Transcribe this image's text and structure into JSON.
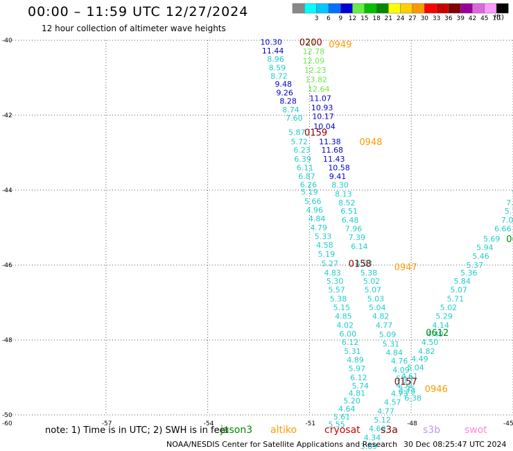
{
  "header": {
    "title": "00:00 – 11:59 UTC 12/27/2024",
    "subtitle": "12 hour collection of altimeter wave heights"
  },
  "legend": {
    "units": "(ft)",
    "items": [
      {
        "label": "",
        "color": "#888888"
      },
      {
        "label": "3",
        "color": "#00ffff"
      },
      {
        "label": "6",
        "color": "#00c8ff"
      },
      {
        "label": "9",
        "color": "#0070ff"
      },
      {
        "label": "12",
        "color": "#0000d8"
      },
      {
        "label": "15",
        "color": "#66ee44"
      },
      {
        "label": "18",
        "color": "#00c000"
      },
      {
        "label": "21",
        "color": "#008800"
      },
      {
        "label": "24",
        "color": "#ffff00"
      },
      {
        "label": "27",
        "color": "#ffd000"
      },
      {
        "label": "30",
        "color": "#ff9900"
      },
      {
        "label": "33",
        "color": "#ff0000"
      },
      {
        "label": "36",
        "color": "#cc0000"
      },
      {
        "label": "39",
        "color": "#800000"
      },
      {
        "label": "42",
        "color": "#990099"
      },
      {
        "label": "45",
        "color": "#dd66dd"
      },
      {
        "label": "70",
        "color": "#ff99ff"
      },
      {
        "label": "",
        "color": "#000000"
      }
    ]
  },
  "footer": {
    "note": "note: 1) Time is in UTC; 2) SWH is in feet",
    "satellites": [
      {
        "label": "jason3",
        "color": "#008800"
      },
      {
        "label": "altiko",
        "color": "#ff9900"
      },
      {
        "label": "cryosat",
        "color": "#cc0000"
      },
      {
        "label": "s3a",
        "color": "#800000"
      },
      {
        "label": "s3b",
        "color": "#bb99ee"
      },
      {
        "label": "swot",
        "color": "#ff88dd"
      }
    ],
    "credit": "NOAA/NESDIS Center for Satellite Applications and Research",
    "timestamp": "30 Dec 08:25:47 UTC 2024"
  },
  "colors": {
    "cyan": "#22cccc",
    "blue": "#0000cc",
    "lightgreen": "#66ee44",
    "darkred": "#800000",
    "orange": "#ff9900",
    "green": "#008800"
  },
  "chart_data": {
    "type": "scatter",
    "title": "00:00 – 11:59 UTC 12/27/2024",
    "subtitle": "12 hour collection of altimeter wave heights",
    "xlim": [
      -60,
      -45
    ],
    "ylim": [
      -50,
      -40
    ],
    "x_ticks": [
      -57,
      -54,
      -51,
      -48,
      -45
    ],
    "x_tick_labels": [
      "-57",
      "-54",
      "-51",
      "-48",
      "-45"
    ],
    "x_origin_label": "-60",
    "y_ticks": [
      -40,
      -42,
      -44,
      -46,
      -48,
      -50
    ],
    "y_tick_labels": [
      "-40",
      "-42",
      "-44",
      "-46",
      "-48",
      "-50"
    ],
    "grid": true,
    "time_labels": [
      {
        "text": "0200",
        "x": -51.3,
        "y": -40.05,
        "color": "darkred"
      },
      {
        "text": "0949",
        "x": -50.43,
        "y": -40.1,
        "color": "orange"
      },
      {
        "text": "0159",
        "x": -51.15,
        "y": -42.45,
        "color": "darkred"
      },
      {
        "text": "0948",
        "x": -49.53,
        "y": -42.7,
        "color": "orange"
      },
      {
        "text": "0158",
        "x": -49.85,
        "y": -45.95,
        "color": "darkred"
      },
      {
        "text": "0947",
        "x": -48.5,
        "y": -46.05,
        "color": "orange"
      },
      {
        "text": "0612",
        "x": -47.57,
        "y": -47.8,
        "color": "green"
      },
      {
        "text": "0157",
        "x": -48.5,
        "y": -49.1,
        "color": "darkred"
      },
      {
        "text": "0946",
        "x": -47.6,
        "y": -49.3,
        "color": "orange"
      },
      {
        "text": "06",
        "x": -45.2,
        "y": -45.3,
        "color": "green"
      }
    ],
    "tracks": [
      {
        "name": "",
        "color": "blue",
        "points": [
          {
            "x": -52.45,
            "y": -40.05,
            "v": "10.30"
          },
          {
            "x": -52.4,
            "y": -40.28,
            "v": "11.44"
          },
          {
            "x": -52.25,
            "y": -40.5,
            "v": "8.96",
            "c": "cyan"
          },
          {
            "x": -52.2,
            "y": -40.73,
            "v": "8.59",
            "c": "cyan"
          },
          {
            "x": -52.15,
            "y": -40.95,
            "v": "8.72",
            "c": "cyan"
          },
          {
            "x": -52.02,
            "y": -41.17,
            "v": "9.48"
          },
          {
            "x": -51.98,
            "y": -41.4,
            "v": "9.26"
          },
          {
            "x": -51.88,
            "y": -41.62,
            "v": "8.28"
          },
          {
            "x": -51.8,
            "y": -41.85,
            "v": "8.74",
            "c": "cyan"
          },
          {
            "x": -51.7,
            "y": -42.07,
            "v": "7.60",
            "c": "cyan"
          },
          {
            "x": -51.62,
            "y": -42.45,
            "v": "5.87",
            "c": "cyan"
          },
          {
            "x": -51.55,
            "y": -42.7,
            "v": "5.72",
            "c": "cyan"
          },
          {
            "x": -51.47,
            "y": -42.93,
            "v": "6.23",
            "c": "cyan"
          },
          {
            "x": -51.45,
            "y": -43.17,
            "v": "6.39",
            "c": "cyan"
          },
          {
            "x": -51.38,
            "y": -43.4,
            "v": "6.11",
            "c": "cyan"
          },
          {
            "x": -51.33,
            "y": -43.63,
            "v": "6.87",
            "c": "cyan"
          },
          {
            "x": -51.28,
            "y": -43.85,
            "v": "6.26",
            "c": "cyan"
          },
          {
            "x": -51.25,
            "y": -44.05,
            "v": "5.19",
            "c": "cyan"
          },
          {
            "x": -51.15,
            "y": -44.3,
            "v": "5.66",
            "c": "cyan"
          },
          {
            "x": -51.1,
            "y": -44.53,
            "v": "4.96",
            "c": "cyan"
          },
          {
            "x": -51.03,
            "y": -44.76,
            "v": "4.84",
            "c": "cyan"
          },
          {
            "x": -50.98,
            "y": -45.0,
            "v": "4.79",
            "c": "cyan"
          },
          {
            "x": -50.85,
            "y": -45.23,
            "v": "5.33",
            "c": "cyan"
          },
          {
            "x": -50.8,
            "y": -45.46,
            "v": "4.58",
            "c": "cyan"
          },
          {
            "x": -50.75,
            "y": -45.7,
            "v": "5.19",
            "c": "cyan"
          },
          {
            "x": -50.65,
            "y": -45.95,
            "v": "5.27",
            "c": "cyan"
          },
          {
            "x": -50.57,
            "y": -46.2,
            "v": "4.83",
            "c": "cyan"
          },
          {
            "x": -50.5,
            "y": -46.43,
            "v": "5.30",
            "c": "cyan"
          },
          {
            "x": -50.45,
            "y": -46.66,
            "v": "5.57",
            "c": "cyan"
          },
          {
            "x": -50.4,
            "y": -46.9,
            "v": "5.38",
            "c": "cyan"
          },
          {
            "x": -50.3,
            "y": -47.13,
            "v": "5.15",
            "c": "cyan"
          },
          {
            "x": -50.25,
            "y": -47.36,
            "v": "4.85",
            "c": "cyan"
          },
          {
            "x": -50.2,
            "y": -47.6,
            "v": "4.02",
            "c": "cyan"
          },
          {
            "x": -50.12,
            "y": -47.83,
            "v": "6.00",
            "c": "cyan"
          },
          {
            "x": -50.05,
            "y": -48.06,
            "v": "6.12",
            "c": "cyan"
          },
          {
            "x": -49.98,
            "y": -48.3,
            "v": "5.31",
            "c": "cyan"
          },
          {
            "x": -49.9,
            "y": -48.53,
            "v": "4.89",
            "c": "cyan"
          },
          {
            "x": -49.85,
            "y": -48.76,
            "v": "5.97",
            "c": "cyan"
          },
          {
            "x": -49.8,
            "y": -49.0,
            "v": "6.12",
            "c": "cyan"
          },
          {
            "x": -49.75,
            "y": -49.22,
            "v": "5.74",
            "c": "cyan"
          },
          {
            "x": -49.85,
            "y": -49.42,
            "v": "4.81",
            "c": "cyan"
          },
          {
            "x": -50.0,
            "y": -49.62,
            "v": "5.20",
            "c": "cyan"
          },
          {
            "x": -50.15,
            "y": -49.83,
            "v": "4.64",
            "c": "cyan"
          },
          {
            "x": -50.3,
            "y": -50.05,
            "v": "5.61",
            "c": "cyan"
          },
          {
            "x": -50.45,
            "y": -50.25,
            "v": "5.55",
            "c": "cyan"
          }
        ]
      },
      {
        "name": "",
        "color": "lightgreen",
        "points": [
          {
            "x": -51.1,
            "y": -40.05,
            "v": "21"
          },
          {
            "x": -51.2,
            "y": -40.3,
            "v": "12.78"
          },
          {
            "x": -51.2,
            "y": -40.55,
            "v": "12.09"
          },
          {
            "x": -51.15,
            "y": -40.8,
            "v": "12.23"
          },
          {
            "x": -51.12,
            "y": -41.05,
            "v": "13.82"
          },
          {
            "x": -51.05,
            "y": -41.3,
            "v": "12.64"
          },
          {
            "x": -51.0,
            "y": -41.55,
            "v": "11.07",
            "c": "blue"
          },
          {
            "x": -50.95,
            "y": -41.8,
            "v": "10.93",
            "c": "blue"
          },
          {
            "x": -50.92,
            "y": -42.03,
            "v": "10.17",
            "c": "blue"
          },
          {
            "x": -50.88,
            "y": -42.3,
            "v": "10.04",
            "c": "blue"
          },
          {
            "x": -50.72,
            "y": -42.7,
            "v": "11.38",
            "c": "blue"
          },
          {
            "x": -50.65,
            "y": -42.93,
            "v": "11.68",
            "c": "blue"
          },
          {
            "x": -50.6,
            "y": -43.17,
            "v": "11.43",
            "c": "blue"
          },
          {
            "x": -50.45,
            "y": -43.4,
            "v": "10.58",
            "c": "blue"
          },
          {
            "x": -50.42,
            "y": -43.63,
            "v": "9.41",
            "c": "blue"
          },
          {
            "x": -50.35,
            "y": -43.86,
            "v": "8.30",
            "c": "cyan"
          },
          {
            "x": -50.25,
            "y": -44.1,
            "v": "8.13",
            "c": "cyan"
          },
          {
            "x": -50.15,
            "y": -44.33,
            "v": "8.52",
            "c": "cyan"
          },
          {
            "x": -50.08,
            "y": -44.56,
            "v": "6.51",
            "c": "cyan"
          },
          {
            "x": -50.05,
            "y": -44.8,
            "v": "6.48",
            "c": "cyan"
          },
          {
            "x": -49.95,
            "y": -45.03,
            "v": "7.96",
            "c": "cyan"
          },
          {
            "x": -49.85,
            "y": -45.26,
            "v": "7.39",
            "c": "cyan"
          },
          {
            "x": -49.78,
            "y": -45.5,
            "v": "6.14",
            "c": "cyan"
          },
          {
            "x": -49.65,
            "y": -45.95,
            "v": "4.53",
            "c": "cyan"
          },
          {
            "x": -49.5,
            "y": -46.2,
            "v": "5.38",
            "c": "cyan"
          },
          {
            "x": -49.42,
            "y": -46.43,
            "v": "5.02",
            "c": "cyan"
          },
          {
            "x": -49.38,
            "y": -46.66,
            "v": "5.07",
            "c": "cyan"
          },
          {
            "x": -49.3,
            "y": -46.9,
            "v": "5.03",
            "c": "cyan"
          },
          {
            "x": -49.25,
            "y": -47.13,
            "v": "5.04",
            "c": "cyan"
          },
          {
            "x": -49.15,
            "y": -47.36,
            "v": "4.82",
            "c": "cyan"
          },
          {
            "x": -49.05,
            "y": -47.6,
            "v": "4.77",
            "c": "cyan"
          },
          {
            "x": -48.95,
            "y": -47.85,
            "v": "5.09",
            "c": "cyan"
          },
          {
            "x": -48.85,
            "y": -48.1,
            "v": "5.31",
            "c": "cyan"
          },
          {
            "x": -48.75,
            "y": -48.33,
            "v": "4.84",
            "c": "cyan"
          },
          {
            "x": -48.6,
            "y": -48.56,
            "v": "4.76",
            "c": "cyan"
          },
          {
            "x": -48.55,
            "y": -48.8,
            "v": "4.09",
            "c": "cyan"
          },
          {
            "x": -48.45,
            "y": -49.03,
            "v": "5.13",
            "c": "cyan"
          },
          {
            "x": -48.38,
            "y": -49.3,
            "v": "5.75",
            "c": "cyan"
          },
          {
            "x": -48.38,
            "y": -49.38,
            "v": "6.79",
            "c": "cyan"
          },
          {
            "x": -48.2,
            "y": -49.55,
            "v": "6.38",
            "c": "cyan"
          }
        ]
      },
      {
        "name": "",
        "color": "cyan",
        "points": [
          {
            "x": -45.05,
            "y": -44.1,
            "v": "7"
          },
          {
            "x": -45.2,
            "y": -44.33,
            "v": "7."
          },
          {
            "x": -45.25,
            "y": -44.56,
            "v": "5.7"
          },
          {
            "x": -45.35,
            "y": -44.8,
            "v": "7.03"
          },
          {
            "x": -45.55,
            "y": -45.03,
            "v": "6.66"
          },
          {
            "x": -45.88,
            "y": -45.3,
            "v": "5.69"
          },
          {
            "x": -46.08,
            "y": -45.53,
            "v": "5.94"
          },
          {
            "x": -46.2,
            "y": -45.76,
            "v": "5.46"
          },
          {
            "x": -46.38,
            "y": -46.0,
            "v": "5.37"
          },
          {
            "x": -46.55,
            "y": -46.2,
            "v": "5.36"
          },
          {
            "x": -46.75,
            "y": -46.43,
            "v": "5.84"
          },
          {
            "x": -46.85,
            "y": -46.66,
            "v": "5.07"
          },
          {
            "x": -46.95,
            "y": -46.9,
            "v": "5.71"
          },
          {
            "x": -47.15,
            "y": -47.13,
            "v": "5.02"
          },
          {
            "x": -47.28,
            "y": -47.36,
            "v": "5.29"
          },
          {
            "x": -47.38,
            "y": -47.6,
            "v": "4.14"
          },
          {
            "x": -47.55,
            "y": -47.83,
            "v": "4.49"
          },
          {
            "x": -47.7,
            "y": -48.06,
            "v": "4.50"
          },
          {
            "x": -47.8,
            "y": -48.3,
            "v": "4.82"
          },
          {
            "x": -48.0,
            "y": -48.5,
            "v": "4.49"
          },
          {
            "x": -48.12,
            "y": -48.73,
            "v": "5.04"
          },
          {
            "x": -48.3,
            "y": -48.96,
            "v": "4.61"
          },
          {
            "x": -48.45,
            "y": -49.2,
            "v": "4.52"
          },
          {
            "x": -48.6,
            "y": -49.43,
            "v": "4.73"
          },
          {
            "x": -48.8,
            "y": -49.66,
            "v": "4.57"
          },
          {
            "x": -49.0,
            "y": -49.9,
            "v": "4.77"
          },
          {
            "x": -49.1,
            "y": -50.13,
            "v": "5.12"
          },
          {
            "x": -49.25,
            "y": -50.36,
            "v": "4.60"
          },
          {
            "x": -49.4,
            "y": -50.6,
            "v": "4.34"
          },
          {
            "x": -49.5,
            "y": -50.83,
            "v": "3.89"
          },
          {
            "x": -49.58,
            "y": -51.06,
            "v": "5.60"
          }
        ]
      }
    ]
  }
}
